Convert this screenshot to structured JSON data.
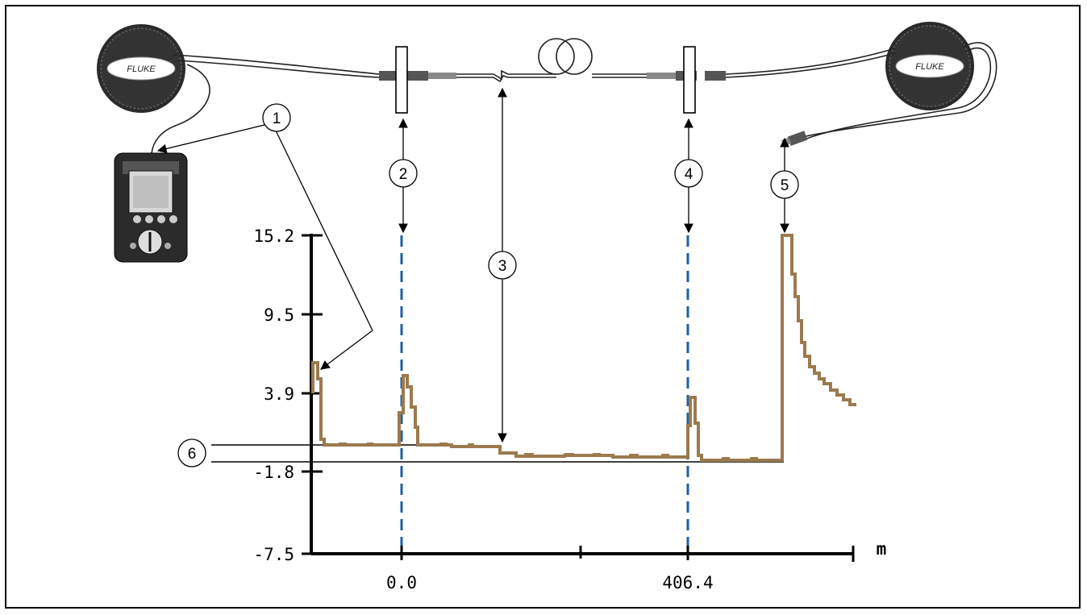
{
  "figure": {
    "y_ticks": [
      "15.2",
      "9.5",
      "3.9",
      "-1.8",
      "-7.5"
    ],
    "x_ticks": [
      "0.0",
      "406.4"
    ],
    "x_unit": "m",
    "callouts": [
      "1",
      "2",
      "3",
      "4",
      "5",
      "6"
    ],
    "device_brand": "FLUKE",
    "colors": {
      "trace": "#9b7a4e",
      "marker": "#1f5fa6",
      "axis": "#000000"
    }
  }
}
